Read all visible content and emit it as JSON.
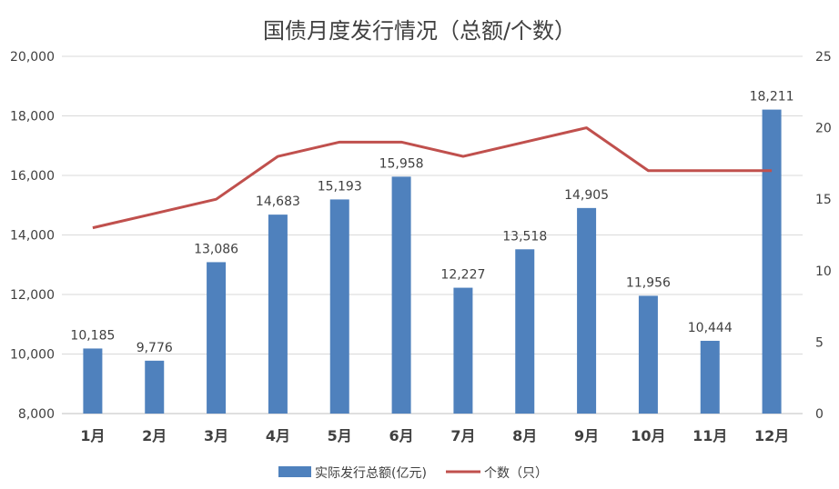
{
  "chart_data": {
    "type": "bar+line",
    "title": "国债月度发行情况（总额/个数）",
    "categories": [
      "1月",
      "2月",
      "3月",
      "4月",
      "5月",
      "6月",
      "7月",
      "8月",
      "9月",
      "10月",
      "11月",
      "12月"
    ],
    "series": [
      {
        "name": "实际发行总额(亿元)",
        "type": "bar",
        "axis": "left",
        "color": "#4F81BD",
        "values": [
          10185,
          9776,
          13086,
          14683,
          15193,
          15958,
          12227,
          13518,
          14905,
          11956,
          10444,
          18211
        ],
        "labels": [
          "10,185",
          "9,776",
          "13,086",
          "14,683",
          "15,193",
          "15,958",
          "12,227",
          "13,518",
          "14,905",
          "11,956",
          "10,444",
          "18,211"
        ]
      },
      {
        "name": "个数（只）",
        "type": "line",
        "axis": "right",
        "color": "#C0504D",
        "values": [
          13,
          14,
          15,
          18,
          19,
          19,
          18,
          19,
          20,
          17,
          17,
          17
        ]
      }
    ],
    "left_axis": {
      "ylim": [
        8000,
        20000
      ],
      "ticks": [
        "8,000",
        "10,000",
        "12,000",
        "14,000",
        "16,000",
        "18,000",
        "20,000"
      ]
    },
    "right_axis": {
      "ylim": [
        0,
        25
      ],
      "ticks": [
        "0",
        "5",
        "10",
        "15",
        "20",
        "25"
      ]
    },
    "grid": true,
    "legend": "bottom"
  }
}
